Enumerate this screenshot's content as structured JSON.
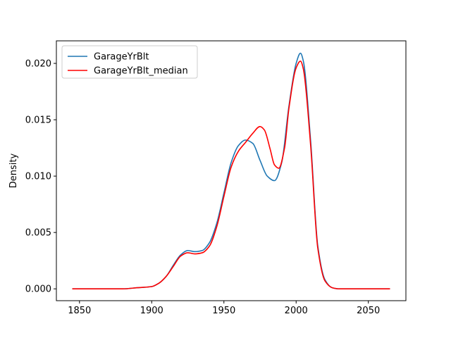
{
  "chart_data": {
    "type": "line",
    "title": "",
    "xlabel": "",
    "ylabel": "Density",
    "xlim": [
      1834,
      2076
    ],
    "ylim": [
      -0.00105,
      0.022
    ],
    "xticks": [
      1850,
      1900,
      1950,
      2000,
      2050
    ],
    "yticks": [
      0.0,
      0.005,
      0.01,
      0.015,
      0.02
    ],
    "ytick_labels": [
      "0.000",
      "0.005",
      "0.010",
      "0.015",
      "0.020"
    ],
    "grid": false,
    "legend": "upper-left",
    "series": [
      {
        "name": "GarageYrBlt",
        "color": "#1f77b4",
        "x": [
          1845,
          1880,
          1890,
          1900,
          1905,
          1910,
          1915,
          1920,
          1925,
          1930,
          1935,
          1940,
          1945,
          1950,
          1955,
          1960,
          1965,
          1970,
          1975,
          1980,
          1985,
          1990,
          1995,
          2000,
          2003,
          2005,
          2010,
          2015,
          2020,
          2025,
          2030,
          2040,
          2065
        ],
        "y": [
          0,
          0,
          0.0001,
          0.0002,
          0.0005,
          0.0011,
          0.0021,
          0.003,
          0.0034,
          0.0033,
          0.0034,
          0.0041,
          0.0058,
          0.0085,
          0.0112,
          0.0127,
          0.0132,
          0.0129,
          0.0114,
          0.01,
          0.0096,
          0.0112,
          0.0162,
          0.02,
          0.0209,
          0.0202,
          0.0132,
          0.0038,
          0.0008,
          0.0001,
          0,
          0,
          0
        ]
      },
      {
        "name": "GarageYrBlt_median",
        "color": "#ff0000",
        "x": [
          1845,
          1880,
          1890,
          1900,
          1905,
          1910,
          1915,
          1920,
          1925,
          1930,
          1935,
          1940,
          1945,
          1950,
          1955,
          1960,
          1965,
          1970,
          1975,
          1978,
          1982,
          1985,
          1988,
          1992,
          1995,
          2000,
          2003,
          2005,
          2010,
          2015,
          2020,
          2025,
          2030,
          2040,
          2065
        ],
        "y": [
          0,
          0,
          0.0001,
          0.0002,
          0.0005,
          0.0011,
          0.002,
          0.0029,
          0.0032,
          0.0031,
          0.0032,
          0.0038,
          0.0055,
          0.0082,
          0.0108,
          0.0122,
          0.013,
          0.0138,
          0.0144,
          0.0141,
          0.0124,
          0.011,
          0.0107,
          0.0125,
          0.016,
          0.0196,
          0.0202,
          0.0195,
          0.0128,
          0.0036,
          0.0007,
          0.0001,
          0,
          0,
          0
        ]
      }
    ]
  }
}
